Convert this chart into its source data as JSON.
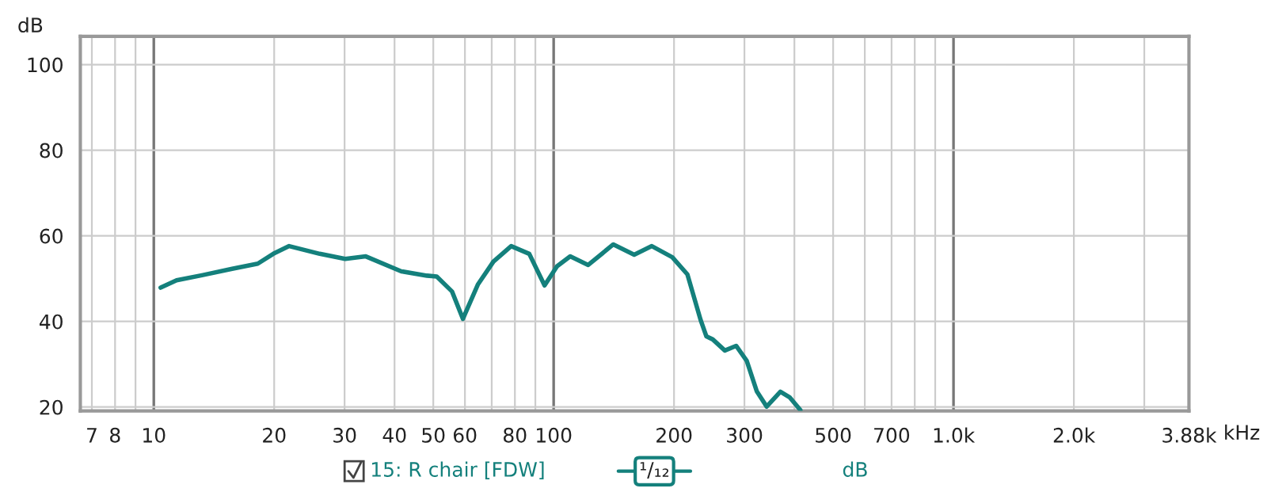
{
  "chart_data": {
    "type": "line",
    "ylabel": "dB",
    "log": "x",
    "grid": true,
    "legend": "bottom",
    "marker": "none",
    "line_style": "solid",
    "xlim": [
      6.55,
      3880
    ],
    "ylim": [
      19.1,
      106.6
    ],
    "xticks": [
      7,
      8,
      {
        "value": 9,
        "label": null
      },
      10,
      20,
      30,
      40,
      50,
      60,
      {
        "value": 70,
        "label": null
      },
      80,
      {
        "value": 90,
        "label": null
      },
      100,
      200,
      300,
      {
        "value": 400,
        "label": null
      },
      500,
      {
        "value": 600,
        "label": null
      },
      700,
      {
        "value": 800,
        "label": null
      },
      {
        "value": 900,
        "label": null
      },
      {
        "value": 1000,
        "label": "1.0k"
      },
      {
        "value": 2000,
        "label": "2.0k"
      },
      {
        "value": 3000,
        "label": null
      },
      {
        "value": 3880,
        "label": "3.88k"
      }
    ],
    "xlabel": "kHz",
    "yticks": [
      20,
      40,
      60,
      80,
      100
    ],
    "series": [
      {
        "name": "15: R chair [FDW]",
        "color": "#14807c",
        "x": [
          10.4,
          11.4,
          13.2,
          15.7,
          18.2,
          19.9,
          21.8,
          26.0,
          30.1,
          33.9,
          41.6,
          48.2,
          51.0,
          55.7,
          59.3,
          64.7,
          70.7,
          78.3,
          86.9,
          94.9,
          102,
          110,
          122,
          141,
          159,
          176,
          198,
          216,
          233,
          241,
          250,
          268,
          286,
          304,
          322,
          341,
          369,
          389,
          414
        ],
        "values": [
          47.9,
          49.6,
          50.8,
          52.3,
          53.5,
          55.8,
          57.6,
          55.8,
          54.6,
          55.2,
          51.7,
          50.7,
          50.5,
          47.0,
          40.6,
          48.7,
          54.0,
          57.6,
          55.8,
          48.4,
          52.9,
          55.2,
          53.2,
          58.0,
          55.6,
          57.6,
          55.0,
          51.0,
          40.4,
          36.5,
          35.8,
          33.2,
          34.3,
          30.8,
          23.7,
          20.1,
          23.6,
          22.3,
          19.3
        ]
      }
    ],
    "annotations": [
      "¹/₁₂",
      "dB"
    ]
  }
}
